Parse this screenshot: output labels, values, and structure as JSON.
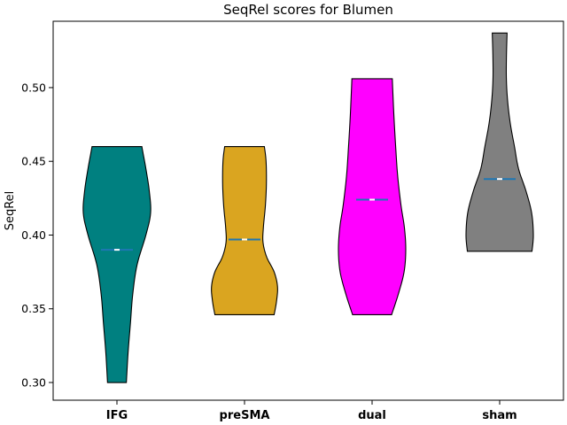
{
  "chart_data": {
    "type": "violin",
    "title": "SeqRel scores for Blumen",
    "xlabel": "",
    "ylabel": "SeqRel",
    "ylim": [
      0.288,
      0.545
    ],
    "yticks": [
      "0.30",
      "0.35",
      "0.40",
      "0.45",
      "0.50"
    ],
    "yticks_values": [
      0.3,
      0.35,
      0.4,
      0.45,
      0.5
    ],
    "categories": [
      "IFG",
      "preSMA",
      "dual",
      "sham"
    ],
    "grid": false,
    "legend": "none",
    "series": [
      {
        "category": "IFG",
        "color": "#008080",
        "min": 0.3,
        "max": 0.46,
        "median": 0.39,
        "profile": [
          [
            0.3,
            0.28
          ],
          [
            0.32,
            0.33
          ],
          [
            0.34,
            0.4
          ],
          [
            0.36,
            0.47
          ],
          [
            0.38,
            0.6
          ],
          [
            0.4,
            0.86
          ],
          [
            0.415,
            1.0
          ],
          [
            0.43,
            0.96
          ],
          [
            0.445,
            0.86
          ],
          [
            0.455,
            0.78
          ],
          [
            0.46,
            0.74
          ]
        ]
      },
      {
        "category": "preSMA",
        "color": "#DAA520",
        "min": 0.346,
        "max": 0.46,
        "median": 0.397,
        "profile": [
          [
            0.346,
            0.88
          ],
          [
            0.355,
            0.95
          ],
          [
            0.365,
            0.98
          ],
          [
            0.375,
            0.88
          ],
          [
            0.385,
            0.66
          ],
          [
            0.395,
            0.55
          ],
          [
            0.405,
            0.56
          ],
          [
            0.42,
            0.62
          ],
          [
            0.435,
            0.65
          ],
          [
            0.45,
            0.64
          ],
          [
            0.46,
            0.59
          ]
        ]
      },
      {
        "category": "dual",
        "color": "#FF00FF",
        "min": 0.346,
        "max": 0.506,
        "median": 0.424,
        "profile": [
          [
            0.346,
            0.58
          ],
          [
            0.36,
            0.78
          ],
          [
            0.375,
            0.95
          ],
          [
            0.39,
            1.0
          ],
          [
            0.405,
            0.96
          ],
          [
            0.42,
            0.86
          ],
          [
            0.44,
            0.76
          ],
          [
            0.46,
            0.7
          ],
          [
            0.48,
            0.65
          ],
          [
            0.495,
            0.62
          ],
          [
            0.506,
            0.6
          ]
        ]
      },
      {
        "category": "sham",
        "color": "#808080",
        "min": 0.389,
        "max": 0.537,
        "median": 0.438,
        "profile": [
          [
            0.389,
            0.96
          ],
          [
            0.4,
            1.0
          ],
          [
            0.415,
            0.95
          ],
          [
            0.43,
            0.78
          ],
          [
            0.445,
            0.56
          ],
          [
            0.46,
            0.44
          ],
          [
            0.475,
            0.32
          ],
          [
            0.49,
            0.24
          ],
          [
            0.505,
            0.2
          ],
          [
            0.52,
            0.2
          ],
          [
            0.537,
            0.22
          ]
        ]
      }
    ]
  }
}
